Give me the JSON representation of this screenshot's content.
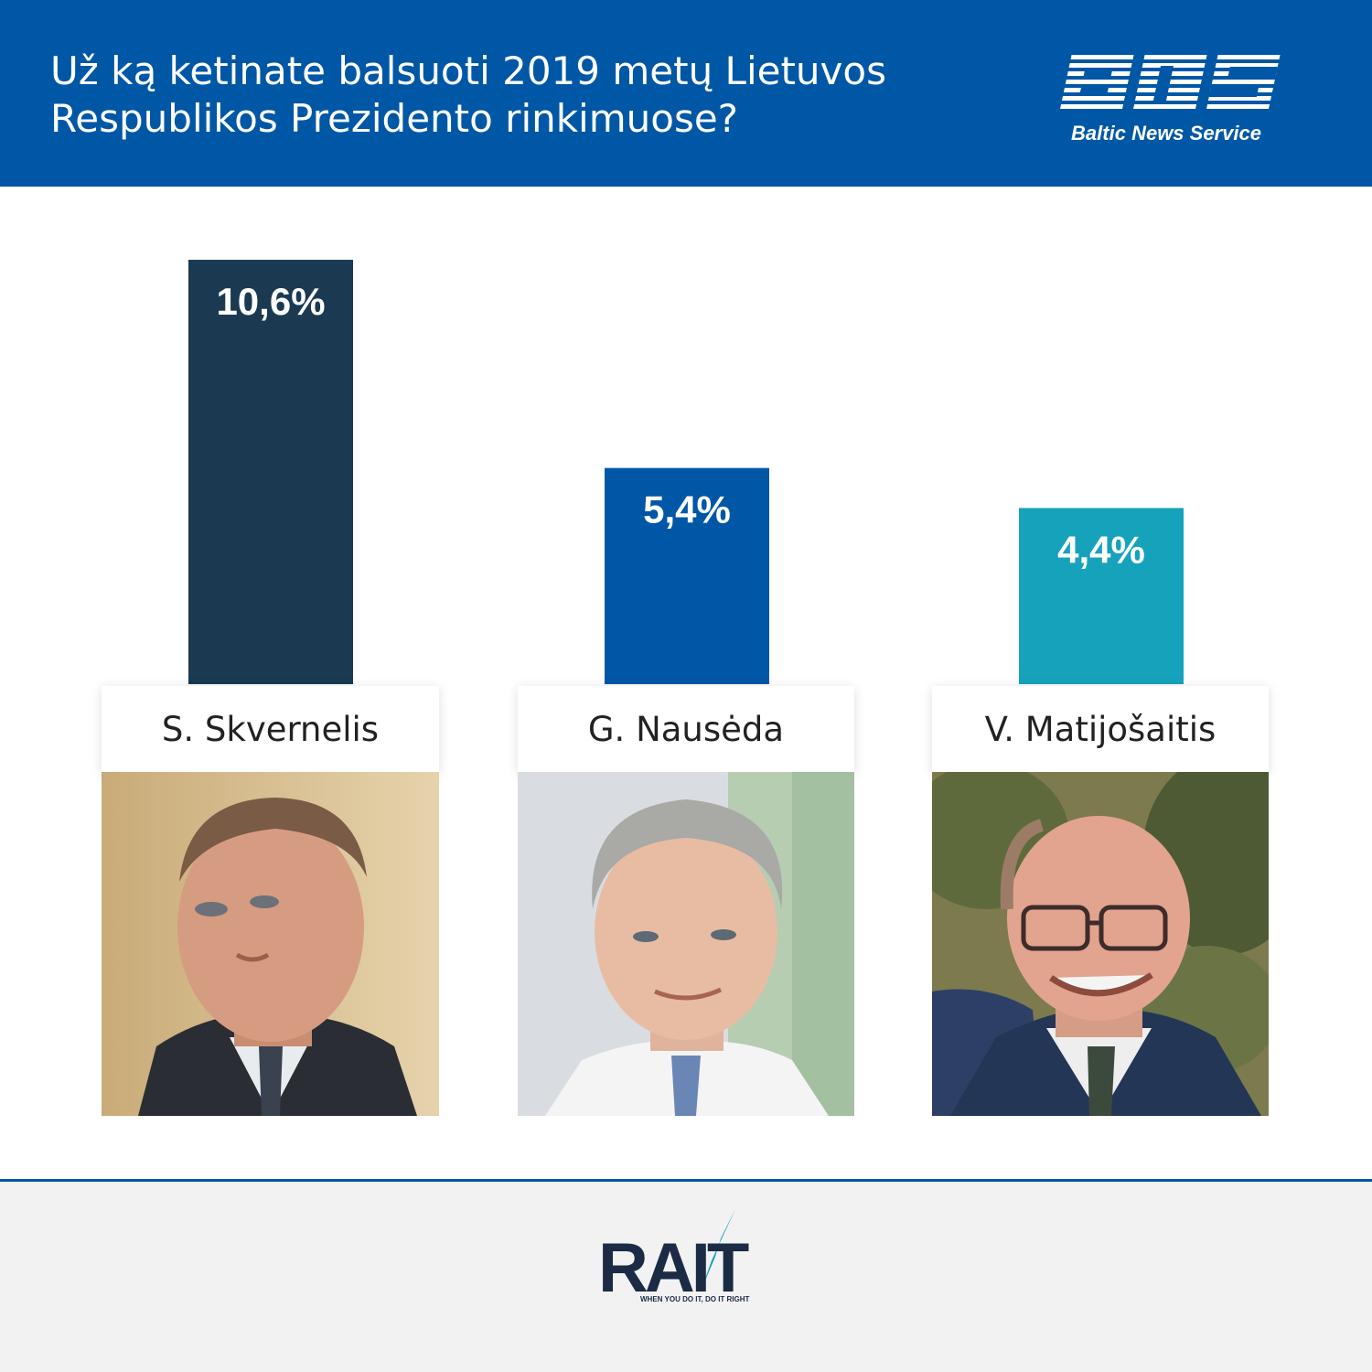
{
  "header": {
    "title_line1": "Už ką ketinate balsuoti 2019 metų Lietuvos",
    "title_line2": "Respublikos Prezidento rinkimuose?",
    "logo_text": "Baltic News Service",
    "background": "#0057a5"
  },
  "chart_data": {
    "type": "bar",
    "title": "Už ką ketinate balsuoti 2019 metų Lietuvos Respublikos Prezidento rinkimuose?",
    "categories": [
      "S. Skvernelis",
      "G. Nausėda",
      "V. Matijošaitis"
    ],
    "values": [
      10.6,
      5.4,
      4.4
    ],
    "value_labels": [
      "10,6%",
      "5,4%",
      "4,4%"
    ],
    "colors": [
      "#1b3a51",
      "#0057a5",
      "#17a2bc"
    ],
    "unit": "%",
    "grid": false,
    "legend": "none"
  },
  "footer": {
    "logo_text": "RAIT",
    "tagline": "WHEN YOU DO IT, DO IT RIGHT"
  }
}
